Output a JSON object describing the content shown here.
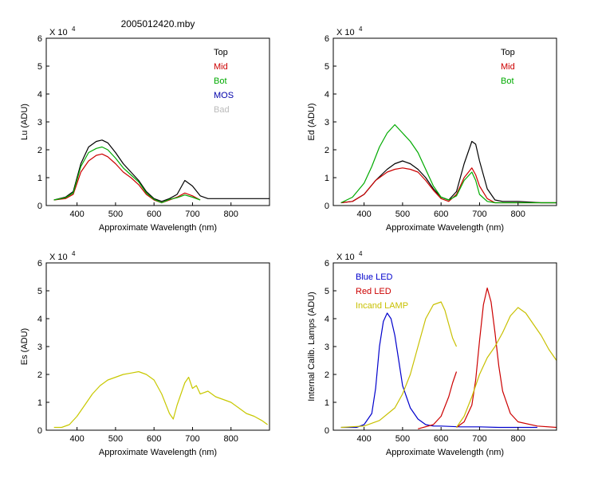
{
  "figure_title": "2005012420.mby",
  "colors": {
    "top": "#000000",
    "mid": "#cc0000",
    "bot": "#00aa00",
    "mos": "#0000aa",
    "bad": "#bbbbbb",
    "es": "#c8c800",
    "blue_led": "#0000cc",
    "red_led": "#cc0000",
    "incand": "#c8c000",
    "axis": "#000000"
  },
  "chart_data": [
    {
      "id": "lu",
      "type": "line",
      "title": "2005012420.mby",
      "xlabel": "Approximate Wavelength (nm)",
      "ylabel": "Lu (ADU)",
      "exponent_label": "X 10",
      "exponent_power": "4",
      "xlim": [
        320,
        900
      ],
      "ylim": [
        0,
        6
      ],
      "xticks": [
        "400",
        "500",
        "600",
        "700",
        "800"
      ],
      "yticks": [
        "0",
        "1",
        "2",
        "3",
        "4",
        "5",
        "6"
      ],
      "legend": [
        {
          "label": "Top",
          "color": "#000000"
        },
        {
          "label": "Mid",
          "color": "#cc0000"
        },
        {
          "label": "Bot",
          "color": "#00aa00"
        },
        {
          "label": "MOS",
          "color": "#0000aa"
        },
        {
          "label": "Bad",
          "color": "#bbbbbb"
        }
      ],
      "series": [
        {
          "name": "Top",
          "color": "#000000",
          "x": [
            340,
            370,
            390,
            410,
            430,
            450,
            465,
            480,
            500,
            520,
            540,
            560,
            580,
            600,
            620,
            640,
            660,
            680,
            700,
            720,
            740,
            760,
            800,
            860,
            900
          ],
          "y": [
            0.2,
            0.3,
            0.5,
            1.5,
            2.1,
            2.3,
            2.35,
            2.25,
            1.9,
            1.5,
            1.2,
            0.9,
            0.5,
            0.25,
            0.15,
            0.25,
            0.4,
            0.9,
            0.7,
            0.35,
            0.25,
            0.25,
            0.25,
            0.25,
            0.25
          ]
        },
        {
          "name": "Mid",
          "color": "#cc0000",
          "x": [
            340,
            370,
            390,
            410,
            430,
            450,
            465,
            480,
            500,
            520,
            540,
            560,
            580,
            600,
            620,
            640,
            660,
            680,
            700,
            720
          ],
          "y": [
            0.2,
            0.25,
            0.4,
            1.2,
            1.6,
            1.8,
            1.85,
            1.75,
            1.5,
            1.2,
            1.0,
            0.75,
            0.4,
            0.2,
            0.1,
            0.2,
            0.3,
            0.45,
            0.35,
            0.2
          ]
        },
        {
          "name": "Bot",
          "color": "#00aa00",
          "x": [
            340,
            370,
            390,
            410,
            430,
            450,
            465,
            480,
            500,
            520,
            540,
            560,
            580,
            600,
            620,
            640,
            660,
            680,
            700,
            720
          ],
          "y": [
            0.2,
            0.28,
            0.45,
            1.4,
            1.9,
            2.05,
            2.1,
            2.0,
            1.7,
            1.35,
            1.1,
            0.85,
            0.45,
            0.22,
            0.1,
            0.22,
            0.28,
            0.38,
            0.3,
            0.2
          ]
        }
      ]
    },
    {
      "id": "ed",
      "type": "line",
      "title": "",
      "xlabel": "Approximate Wavelength (nm)",
      "ylabel": "Ed  (ADU)",
      "exponent_label": "X 10",
      "exponent_power": "4",
      "xlim": [
        320,
        900
      ],
      "ylim": [
        0,
        6
      ],
      "xticks": [
        "400",
        "500",
        "600",
        "700",
        "800"
      ],
      "yticks": [
        "0",
        "1",
        "2",
        "3",
        "4",
        "5",
        "6"
      ],
      "legend": [
        {
          "label": "Top",
          "color": "#000000"
        },
        {
          "label": "Mid",
          "color": "#cc0000"
        },
        {
          "label": "Bot",
          "color": "#00aa00"
        }
      ],
      "series": [
        {
          "name": "Top",
          "color": "#000000",
          "x": [
            340,
            370,
            400,
            430,
            460,
            480,
            500,
            520,
            540,
            560,
            580,
            600,
            620,
            640,
            660,
            680,
            690,
            700,
            720,
            740,
            760,
            800,
            860,
            900
          ],
          "y": [
            0.1,
            0.15,
            0.4,
            0.9,
            1.3,
            1.5,
            1.6,
            1.5,
            1.3,
            1.0,
            0.6,
            0.3,
            0.2,
            0.5,
            1.5,
            2.3,
            2.2,
            1.6,
            0.6,
            0.2,
            0.15,
            0.15,
            0.1,
            0.1
          ]
        },
        {
          "name": "Mid",
          "color": "#cc0000",
          "x": [
            340,
            370,
            400,
            430,
            460,
            480,
            500,
            520,
            540,
            560,
            580,
            600,
            620,
            640,
            660,
            680,
            690,
            700,
            720,
            740,
            760,
            800,
            860,
            900
          ],
          "y": [
            0.1,
            0.15,
            0.4,
            0.9,
            1.2,
            1.3,
            1.35,
            1.3,
            1.2,
            0.9,
            0.55,
            0.25,
            0.15,
            0.4,
            1.0,
            1.35,
            1.1,
            0.7,
            0.25,
            0.1,
            0.1,
            0.1,
            0.1,
            0.1
          ]
        },
        {
          "name": "Bot",
          "color": "#00aa00",
          "x": [
            340,
            370,
            400,
            420,
            440,
            460,
            480,
            500,
            520,
            540,
            560,
            580,
            600,
            620,
            640,
            660,
            680,
            690,
            700,
            720,
            740,
            760,
            800,
            860,
            900
          ],
          "y": [
            0.1,
            0.3,
            0.8,
            1.4,
            2.1,
            2.6,
            2.9,
            2.6,
            2.3,
            1.9,
            1.3,
            0.7,
            0.3,
            0.2,
            0.35,
            0.9,
            1.2,
            0.9,
            0.4,
            0.15,
            0.1,
            0.1,
            0.1,
            0.1,
            0.1
          ]
        }
      ]
    },
    {
      "id": "es",
      "type": "line",
      "title": "",
      "xlabel": "Approximate Wavelength (nm)",
      "ylabel": "Es  (ADU)",
      "exponent_label": "X 10",
      "exponent_power": "4",
      "xlim": [
        320,
        900
      ],
      "ylim": [
        0,
        6
      ],
      "xticks": [
        "400",
        "500",
        "600",
        "700",
        "800"
      ],
      "yticks": [
        "0",
        "1",
        "2",
        "3",
        "4",
        "5",
        "6"
      ],
      "legend": [],
      "series": [
        {
          "name": "Es",
          "color": "#c8c800",
          "x": [
            340,
            360,
            380,
            400,
            420,
            440,
            460,
            480,
            500,
            520,
            540,
            560,
            580,
            600,
            620,
            640,
            650,
            660,
            680,
            690,
            700,
            710,
            720,
            740,
            760,
            780,
            800,
            820,
            840,
            860,
            880,
            895
          ],
          "y": [
            0.1,
            0.1,
            0.2,
            0.5,
            0.9,
            1.3,
            1.6,
            1.8,
            1.9,
            2.0,
            2.05,
            2.1,
            2.0,
            1.8,
            1.3,
            0.6,
            0.4,
            0.9,
            1.7,
            1.9,
            1.5,
            1.6,
            1.3,
            1.4,
            1.2,
            1.1,
            1.0,
            0.8,
            0.6,
            0.5,
            0.35,
            0.2
          ]
        }
      ]
    },
    {
      "id": "lamps",
      "type": "line",
      "title": "",
      "xlabel": "Approximate Wavelength (nm)",
      "ylabel": "Internal Calib. Lamps (ADU)",
      "exponent_label": "X 10",
      "exponent_power": "4",
      "xlim": [
        320,
        900
      ],
      "ylim": [
        0,
        6
      ],
      "xticks": [
        "400",
        "500",
        "600",
        "700",
        "800"
      ],
      "yticks": [
        "0",
        "1",
        "2",
        "3",
        "4",
        "5",
        "6"
      ],
      "legend": [
        {
          "label": "Blue LED",
          "color": "#0000cc"
        },
        {
          "label": "Red LED",
          "color": "#cc0000"
        },
        {
          "label": "Incand LAMP",
          "color": "#c8c000"
        }
      ],
      "series": [
        {
          "name": "Blue LED",
          "color": "#0000cc",
          "x": [
            340,
            380,
            400,
            420,
            430,
            440,
            450,
            460,
            470,
            480,
            490,
            500,
            510,
            520,
            540,
            560,
            580,
            600,
            650,
            700,
            750,
            800,
            850
          ],
          "y": [
            0.1,
            0.1,
            0.2,
            0.6,
            1.5,
            3.0,
            3.9,
            4.2,
            4.0,
            3.4,
            2.5,
            1.6,
            1.2,
            0.8,
            0.4,
            0.2,
            0.15,
            0.15,
            0.12,
            0.12,
            0.1,
            0.1,
            0.1
          ]
        },
        {
          "name": "Red LED",
          "color": "#cc0000",
          "x": [
            540,
            580,
            600,
            620,
            630,
            640
          ],
          "y": [
            0.05,
            0.2,
            0.5,
            1.2,
            1.7,
            2.1
          ]
        },
        {
          "name": "Red LED 2",
          "color": "#cc0000",
          "x": [
            640,
            660,
            680,
            690,
            700,
            710,
            720,
            730,
            740,
            750,
            760,
            780,
            800,
            850,
            900
          ],
          "y": [
            0.1,
            0.3,
            0.9,
            1.8,
            3.2,
            4.5,
            5.1,
            4.6,
            3.5,
            2.3,
            1.4,
            0.6,
            0.3,
            0.15,
            0.1
          ]
        },
        {
          "name": "Incand LAMP",
          "color": "#c8c000",
          "x": [
            340,
            400,
            440,
            480,
            500,
            520,
            540,
            560,
            580,
            600,
            610,
            620,
            630,
            640
          ],
          "y": [
            0.1,
            0.15,
            0.35,
            0.8,
            1.3,
            2.0,
            3.0,
            4.0,
            4.5,
            4.6,
            4.3,
            3.8,
            3.3,
            3.0
          ]
        },
        {
          "name": "Incand LAMP 2",
          "color": "#c8c000",
          "x": [
            640,
            660,
            680,
            700,
            720,
            740,
            760,
            780,
            800,
            820,
            840,
            860,
            880,
            900
          ],
          "y": [
            0.1,
            0.5,
            1.2,
            2.0,
            2.6,
            3.0,
            3.5,
            4.1,
            4.4,
            4.2,
            3.8,
            3.4,
            2.9,
            2.5
          ]
        }
      ]
    }
  ]
}
